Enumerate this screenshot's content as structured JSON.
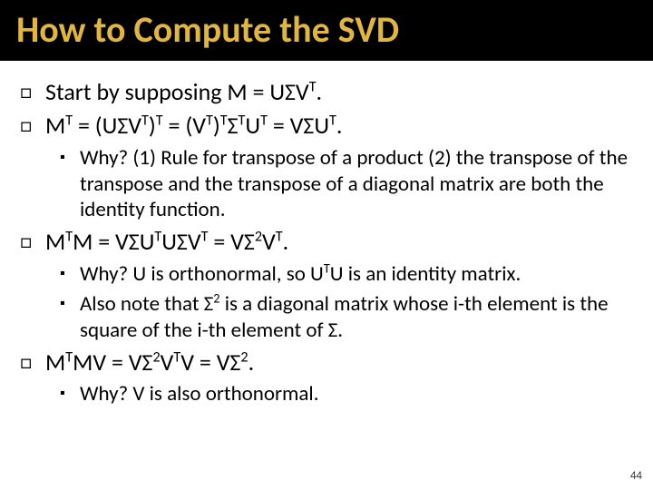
{
  "title": {
    "text": "How to Compute the SVD",
    "color": "#e0b63f",
    "band_color": "#000000",
    "fontsize": 40,
    "fontweight": 700
  },
  "body": {
    "text_color": "#000000",
    "background_color": "#ffffff",
    "lvl1_fontsize": 26,
    "lvl2_fontsize": 23,
    "lvl1_bullet_glyph": "□",
    "lvl2_bullet_glyph": "▪"
  },
  "items": [
    {
      "level": 1,
      "html": "Start by supposing M = UΣV<sup>T</sup>."
    },
    {
      "level": 1,
      "html": "M<sup>T</sup> = (UΣV<sup>T</sup>)<sup>T</sup> = (V<sup>T</sup>)<sup>T</sup>Σ<sup>T</sup>U<sup>T</sup> = VΣU<sup>T</sup>."
    },
    {
      "level": 2,
      "html": "Why? (1) Rule for transpose of a product (2) the transpose of the transpose and the transpose of a diagonal matrix are both the identity function."
    },
    {
      "level": 1,
      "html": "M<sup>T</sup>M = VΣU<sup>T</sup>UΣV<sup>T</sup> = VΣ<sup>2</sup>V<sup>T</sup>."
    },
    {
      "level": 2,
      "html": "Why? U is orthonormal, so U<sup>T</sup>U is an identity matrix."
    },
    {
      "level": 2,
      "html": "Also note that Σ<sup>2</sup> is a diagonal matrix whose i-th element is the square of the i-th element of Σ."
    },
    {
      "level": 1,
      "html": "M<sup>T</sup>MV = VΣ<sup>2</sup>V<sup>T</sup>V = VΣ<sup>2</sup>."
    },
    {
      "level": 2,
      "html": "Why? V is also orthonormal."
    }
  ],
  "page_number": "44"
}
